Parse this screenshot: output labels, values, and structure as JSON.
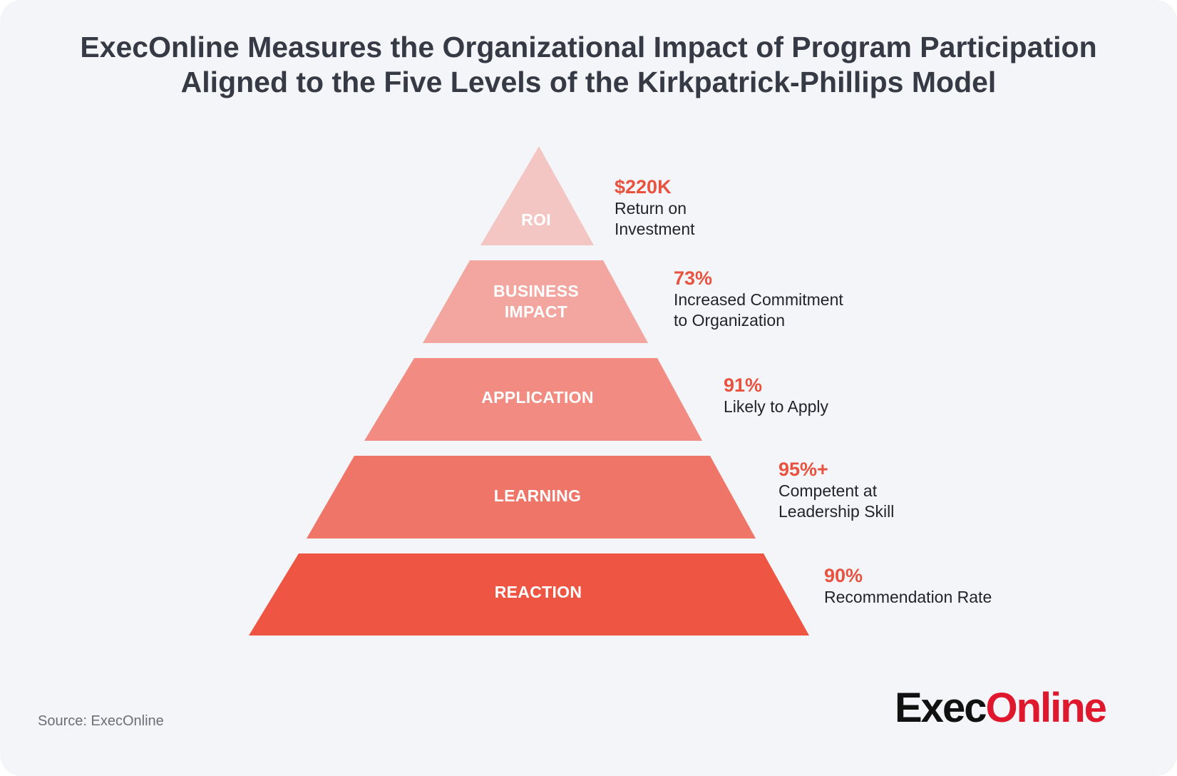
{
  "title": {
    "line1": "ExecOnline Measures the Organizational Impact of Program Participation",
    "line2": "Aligned to the Five Levels of the Kirkpatrick-Phillips Model"
  },
  "colors": {
    "background": "#f4f5f8",
    "accent": "#e9523f",
    "tier_roi": "#f4c6c3",
    "tier_business_impact": "#f3a69f",
    "tier_application": "#f28c82",
    "tier_learning": "#f07569",
    "tier_reaction": "#ef5543"
  },
  "levels": [
    {
      "label_lines": [
        "ROI"
      ],
      "value": "$220K",
      "desc_lines": [
        "Return on",
        "Investment"
      ]
    },
    {
      "label_lines": [
        "BUSINESS",
        "IMPACT"
      ],
      "value": "73%",
      "desc_lines": [
        "Increased Commitment",
        "to Organization"
      ]
    },
    {
      "label_lines": [
        "APPLICATION"
      ],
      "value": "91%",
      "desc_lines": [
        "Likely to Apply"
      ]
    },
    {
      "label_lines": [
        "LEARNING"
      ],
      "value": "95%+",
      "desc_lines": [
        "Competent at",
        "Leadership Skill"
      ]
    },
    {
      "label_lines": [
        "REACTION"
      ],
      "value": "90%",
      "desc_lines": [
        "Recommendation Rate"
      ]
    }
  ],
  "source": "Source: ExecOnline",
  "logo": {
    "part1": "Exec",
    "part2": "Online"
  }
}
